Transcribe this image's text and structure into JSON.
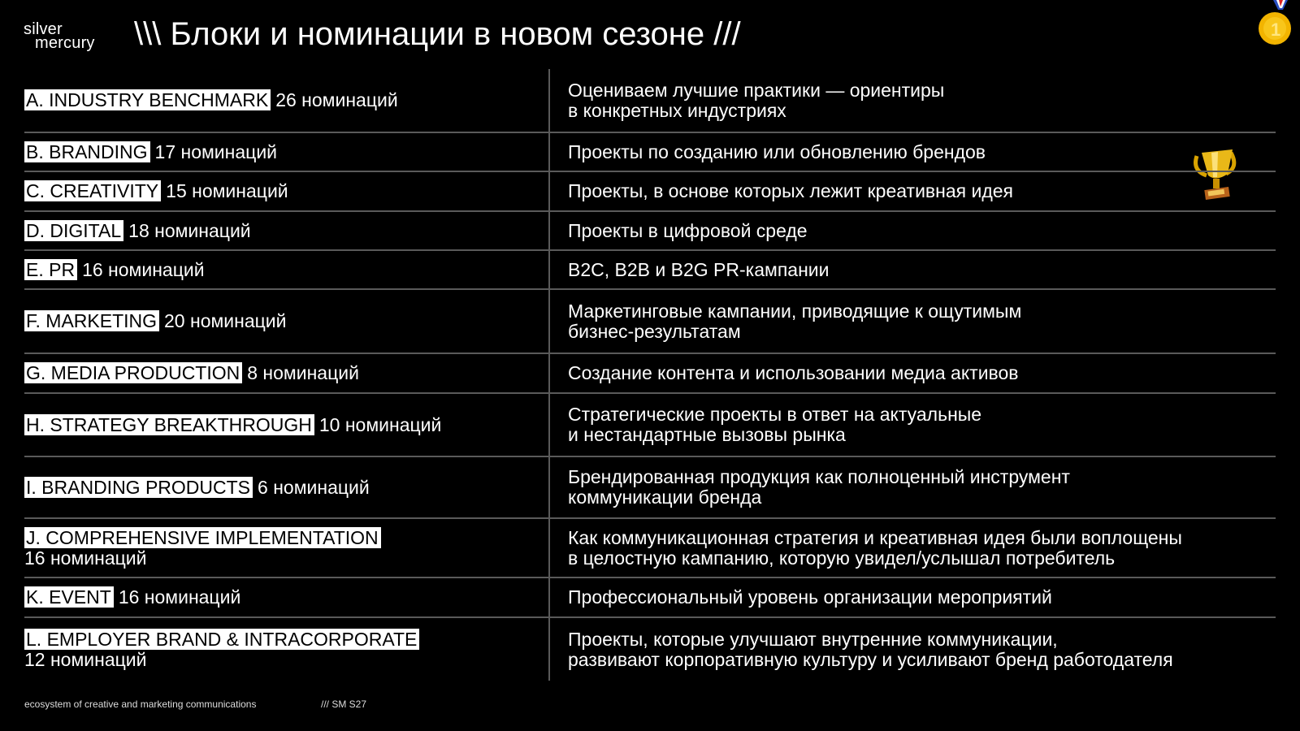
{
  "logo": {
    "line1": "silver",
    "line2": "mercury"
  },
  "title": "\\\\\\ Блоки и номинации в новом сезоне ///",
  "icons": {
    "medal": "first-place-medal-icon",
    "trophy": "trophy-icon"
  },
  "colors": {
    "background": "#000000",
    "text": "#ffffff",
    "tag_bg": "#ffffff",
    "divider": "#5a5a5a"
  },
  "rows": [
    {
      "tag": "A. INDUSTRY BENCHMARK",
      "count": "26 номинаций",
      "desc": "Оцениваем лучшие практики — ориентиры\nв конкретных индустриях",
      "h": 78
    },
    {
      "tag": "B. BRANDING",
      "count": "17 номинаций",
      "desc": "Проекты по созданию или обновлению брендов",
      "h": 48
    },
    {
      "tag": "C. CREATIVITY",
      "count": "15 номинаций",
      "desc": "Проекты, в основе которых лежит креативная идея",
      "h": 49
    },
    {
      "tag": "D. DIGITAL",
      "count": "18 номинаций",
      "desc": "Проекты в цифровой среде",
      "h": 48
    },
    {
      "tag": "E. PR",
      "count": "16 номинаций",
      "desc": "B2C, B2B и B2G PR-кампании",
      "h": 48
    },
    {
      "tag": "F. MARKETING",
      "count": "20 номинаций",
      "desc": "Маркетинговые кампании, приводящие к ощутимым\nбизнес-результатам",
      "h": 79
    },
    {
      "tag": "G. MEDIA PRODUCTION",
      "count": "8 номинаций",
      "desc": "Создание контента и использовании медиа активов",
      "h": 49
    },
    {
      "tag": "H. STRATEGY BREAKTHROUGH",
      "count": "10 номинаций",
      "desc": "Стратегические проекты в ответ на актуальные\nи нестандартные вызовы рынка",
      "h": 78
    },
    {
      "tag": "I. BRANDING PRODUCTS",
      "count": "6 номинаций",
      "desc": "Брендированная продукция как полноценный инструмент\nкоммуникации бренда",
      "h": 76
    },
    {
      "tag": "J. COMPREHENSIVE IMPLEMENTATION",
      "count": "16 номинаций",
      "wrap": true,
      "desc": "Как коммуникационная стратегия и креативная идея были воплощены\nв целостную кампанию, которую увидел/услышал потребитель",
      "h": 73
    },
    {
      "tag": "K. EVENT",
      "count": "16 номинаций",
      "desc": "Профессиональный уровень организации мероприятий",
      "h": 49
    },
    {
      "tag": "L. EMPLOYER BRAND & INTRACORPORATE",
      "count": "12 номинаций",
      "wrap": true,
      "desc": "Проекты, которые улучшают внутренние коммуникации,\nразвивают корпоративную культуру и усиливают бренд работодателя",
      "h": 78
    }
  ],
  "footer": {
    "tagline": "ecosystem of creative and marketing communications",
    "code": "/// SM S27"
  }
}
